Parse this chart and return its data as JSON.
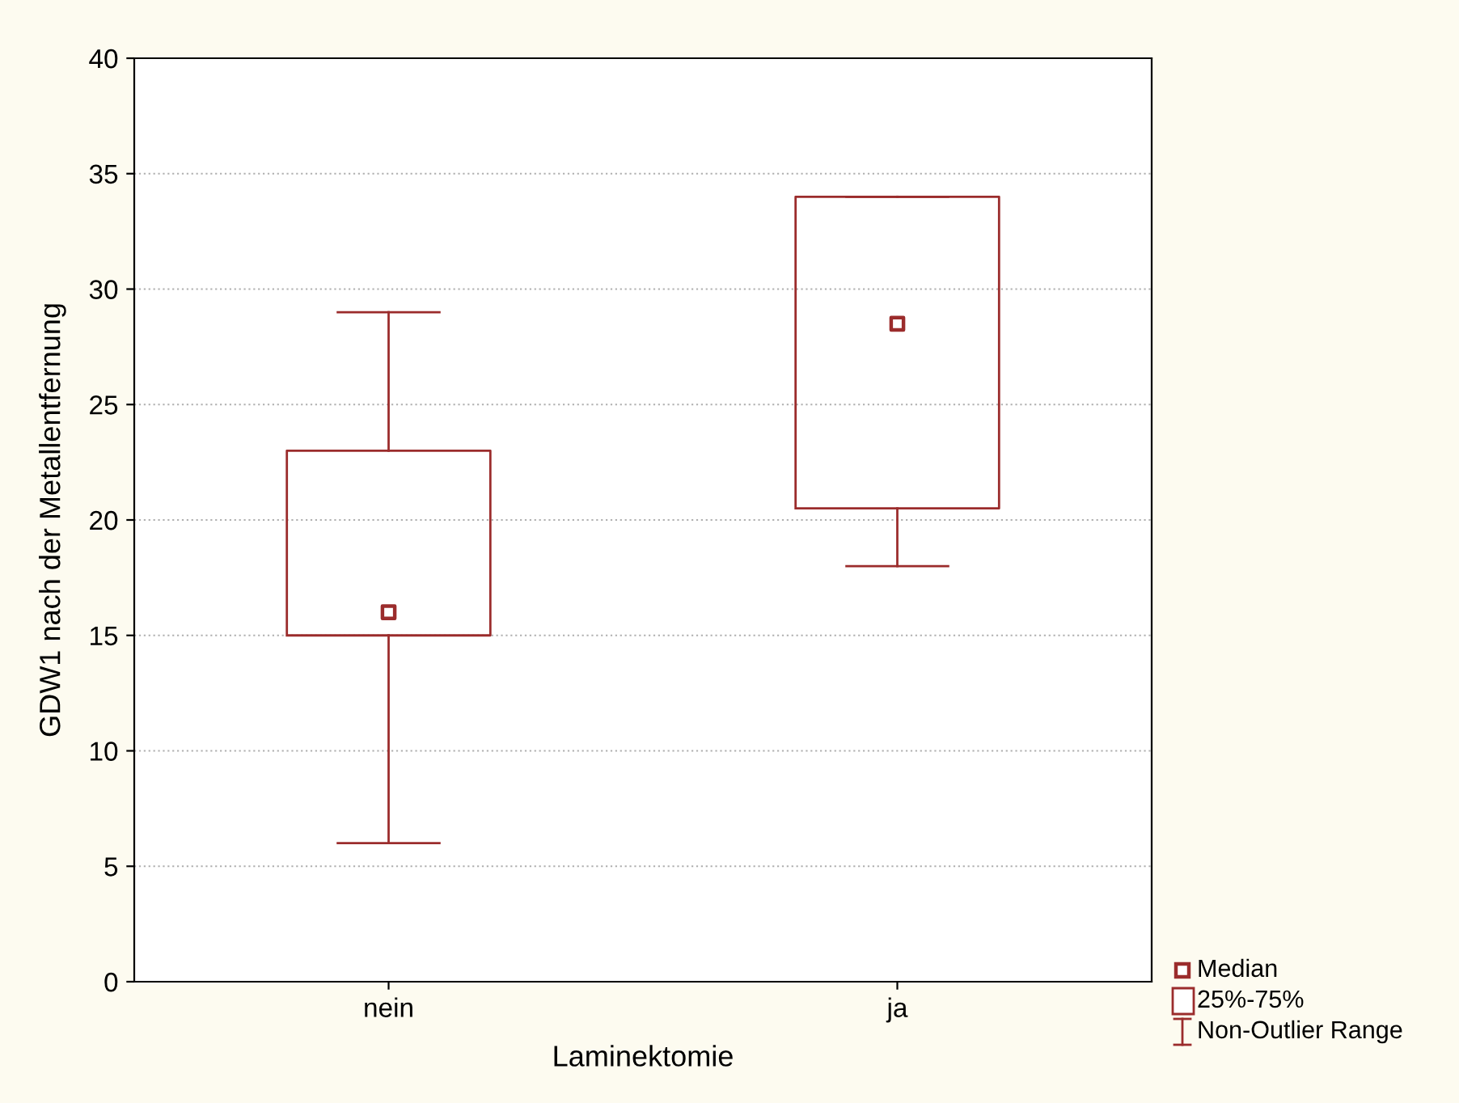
{
  "chart_data": {
    "type": "box",
    "xlabel": "Laminektomie",
    "ylabel": "GDW1 nach der Metallentfernung",
    "categories": [
      "nein",
      "ja"
    ],
    "boxes": [
      {
        "low": 6,
        "q1": 15,
        "median": 16,
        "q3": 23,
        "high": 29
      },
      {
        "low": 18,
        "q1": 20.5,
        "median": 28.5,
        "q3": 34,
        "high": 34
      }
    ],
    "color": "#9b2c2c",
    "ylim": [
      0,
      40
    ],
    "yticks": [
      0,
      5,
      10,
      15,
      20,
      25,
      30,
      35,
      40
    ],
    "grid": "y",
    "annotations": [
      "Median",
      "25%-75%",
      "Non-Outlier Range"
    ]
  }
}
